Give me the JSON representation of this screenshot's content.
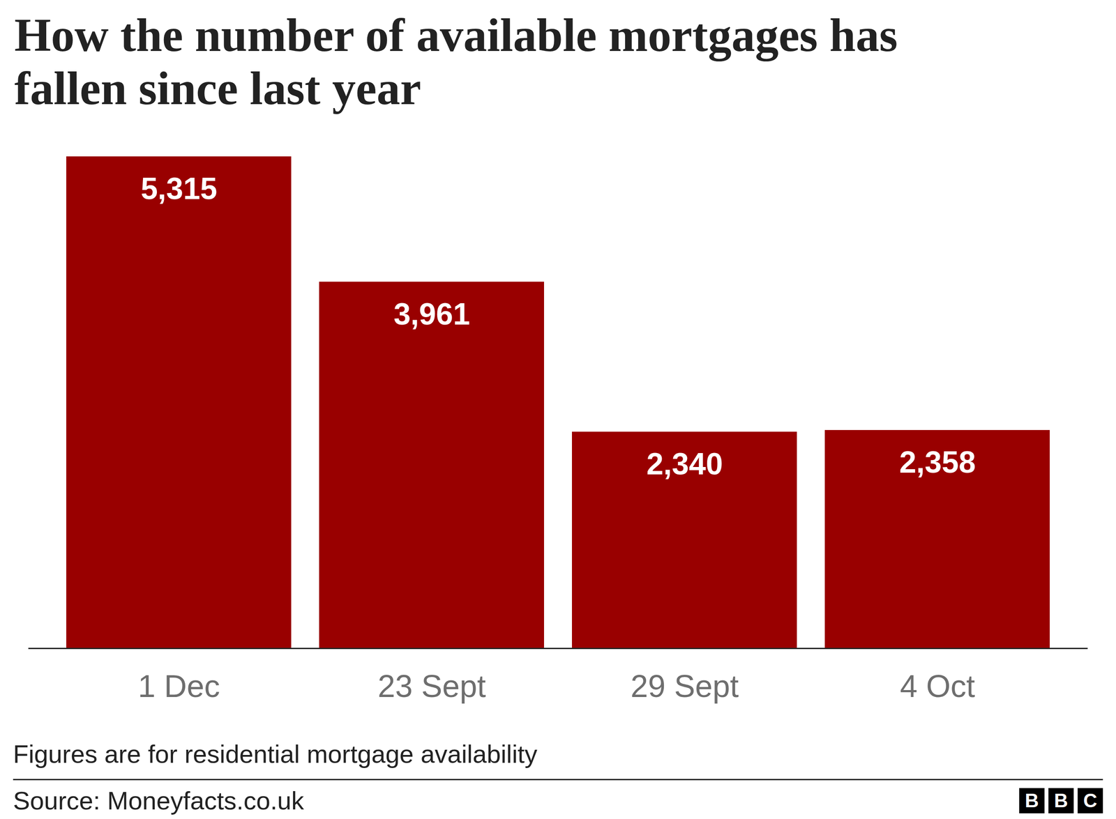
{
  "chart_data": {
    "type": "bar",
    "title": "How the number of available mortgages has fallen since last year",
    "categories": [
      "1 Dec",
      "23 Sept",
      "29 Sept",
      "4 Oct"
    ],
    "values": [
      5315,
      3961,
      2340,
      2358
    ],
    "value_labels": [
      "5,315",
      "3,961",
      "2,340",
      "2,358"
    ],
    "color": "#990000",
    "ylim": [
      0,
      5315
    ],
    "data_labels": true,
    "tick_labels": "x",
    "caption": "Figures are for residential mortgage availability",
    "source": "Source: Moneyfacts.co.uk",
    "logo": "BBC"
  }
}
